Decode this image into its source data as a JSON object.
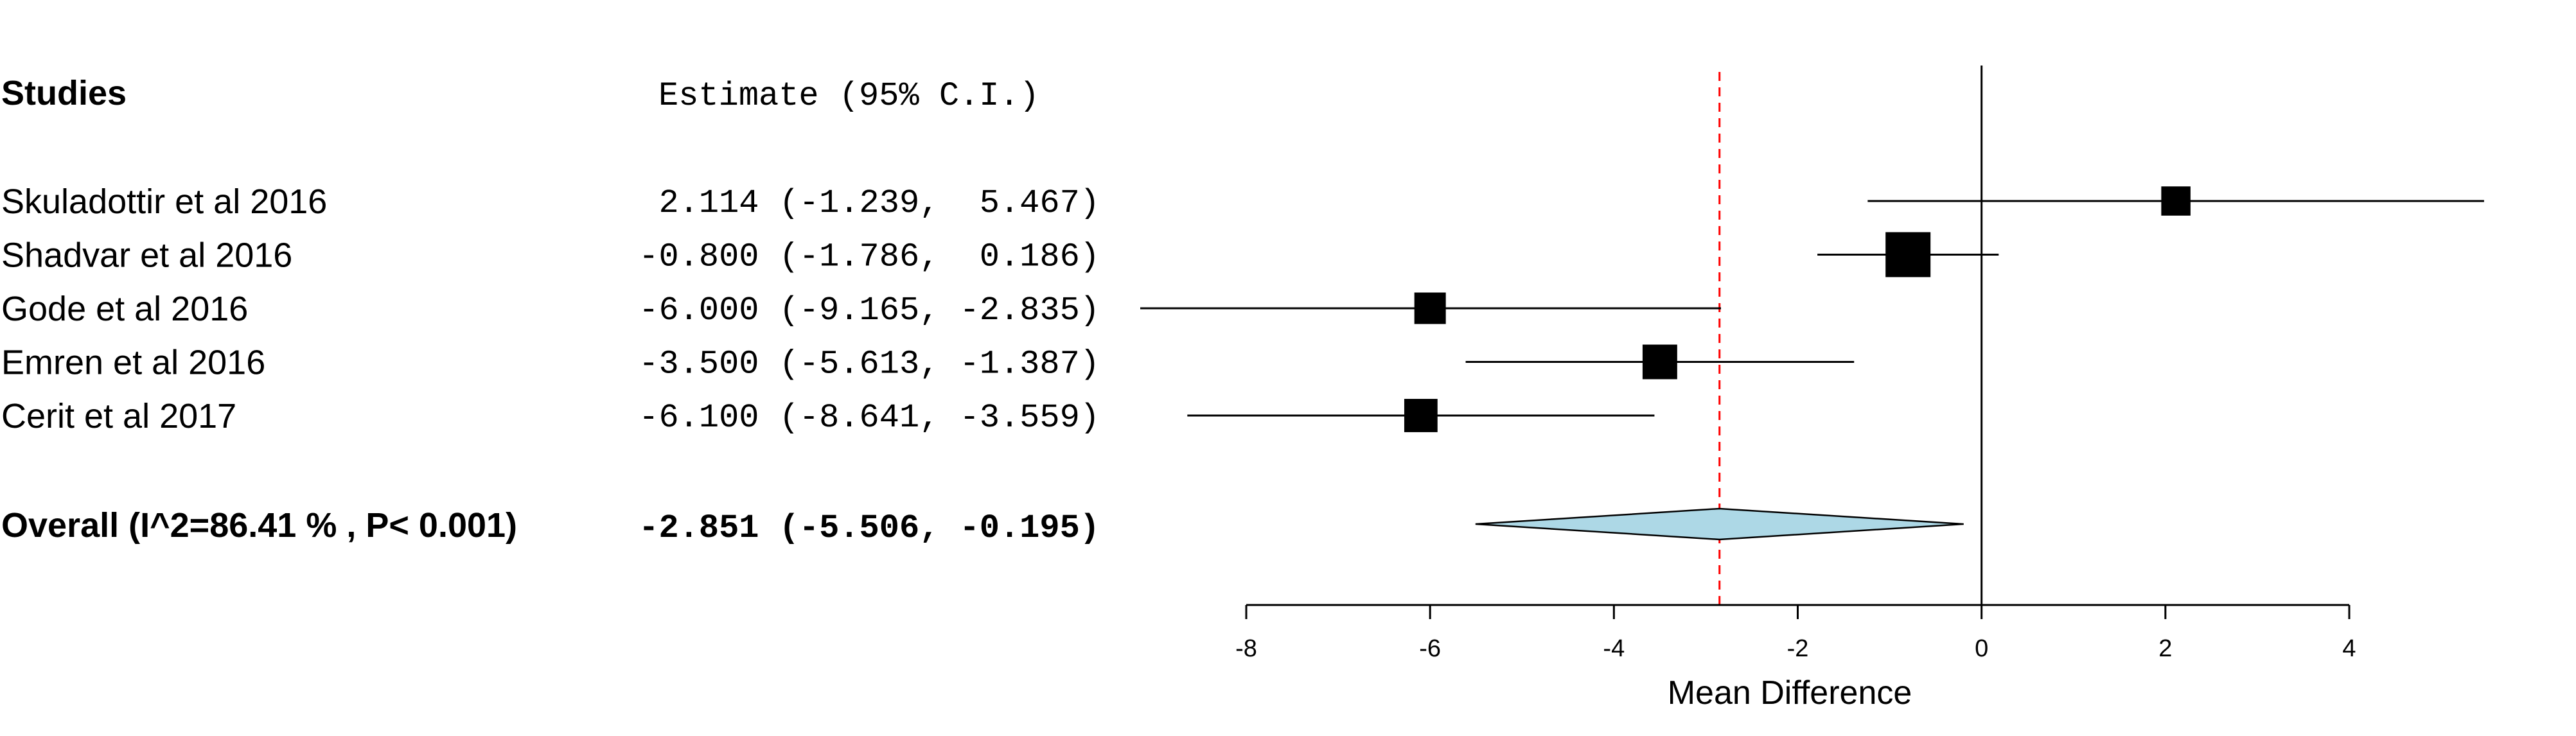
{
  "chart_data": {
    "type": "forest",
    "header": {
      "studies": "Studies",
      "estimate": "Estimate (95% C.I.)"
    },
    "studies": [
      {
        "label": "Skuladottir et al 2016",
        "estimate": 2.114,
        "lower": -1.239,
        "upper": 5.467,
        "text": " 2.114 (-1.239,  5.467)",
        "weight_rel": 0.65
      },
      {
        "label": "Shadvar et al 2016",
        "estimate": -0.8,
        "lower": -1.786,
        "upper": 0.186,
        "text": "-0.800 (-1.786,  0.186)",
        "weight_rel": 1.0
      },
      {
        "label": "Gode et al 2016",
        "estimate": -6.0,
        "lower": -9.165,
        "upper": -2.835,
        "text": "-6.000 (-9.165, -2.835)",
        "weight_rel": 0.7
      },
      {
        "label": "Emren et al 2016",
        "estimate": -3.5,
        "lower": -5.613,
        "upper": -1.387,
        "text": "-3.500 (-5.613, -1.387)",
        "weight_rel": 0.77
      },
      {
        "label": "Cerit et al 2017",
        "estimate": -6.1,
        "lower": -8.641,
        "upper": -3.559,
        "text": "-6.100 (-8.641, -3.559)",
        "weight_rel": 0.74
      }
    ],
    "overall": {
      "label": "Overall (I^2=86.41 % , P< 0.001)",
      "estimate": -2.851,
      "lower": -5.506,
      "upper": -0.195,
      "text": "-2.851 (-5.506, -0.195)"
    },
    "xlim": [
      -8,
      4
    ],
    "xticks": [
      -8,
      -6,
      -4,
      -2,
      0,
      2,
      4
    ],
    "xticklabels": [
      "-8",
      "-6",
      "-4",
      "-2",
      "0",
      "2",
      "4"
    ],
    "xlabel": "Mean Difference",
    "null_line": 0,
    "colors": {
      "box": "#000000",
      "diamond_fill": "#add8e6",
      "pooled_line": "#ff0000",
      "line": "#000000"
    }
  }
}
